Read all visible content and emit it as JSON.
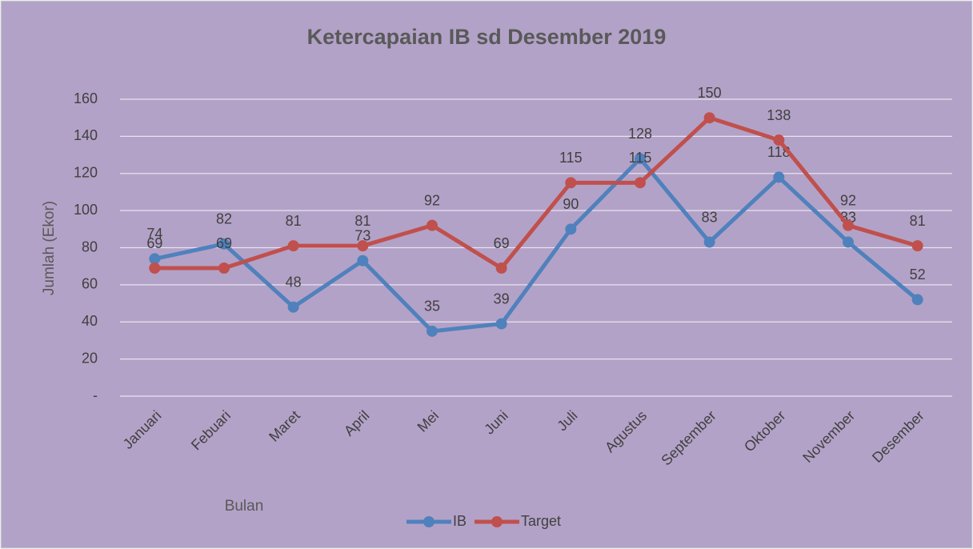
{
  "chart_data": {
    "type": "line",
    "title": "Ketercapaian IB sd Desember 2019",
    "x_label": "Bulan",
    "y_label": "Jumlah (Ekor)",
    "categories": [
      "Januari",
      "Febuari",
      "Maret",
      "April",
      "Mei",
      "Juni",
      "Juli",
      "Agustus",
      "September",
      "Oktober",
      "November",
      "Desember"
    ],
    "series": [
      {
        "name": "IB",
        "color": "#4f81bd",
        "values": [
          74,
          82,
          48,
          73,
          35,
          39,
          90,
          128,
          83,
          118,
          83,
          52
        ]
      },
      {
        "name": "Target",
        "color": "#c0504d",
        "values": [
          69,
          69,
          81,
          81,
          92,
          69,
          115,
          115,
          150,
          138,
          92,
          81
        ]
      }
    ],
    "ylim": [
      0,
      160
    ],
    "yticks": [
      {
        "value": 0,
        "label": "-"
      },
      20,
      40,
      60,
      80,
      100,
      120,
      140,
      160
    ],
    "grid": true,
    "legend": "bottom"
  }
}
